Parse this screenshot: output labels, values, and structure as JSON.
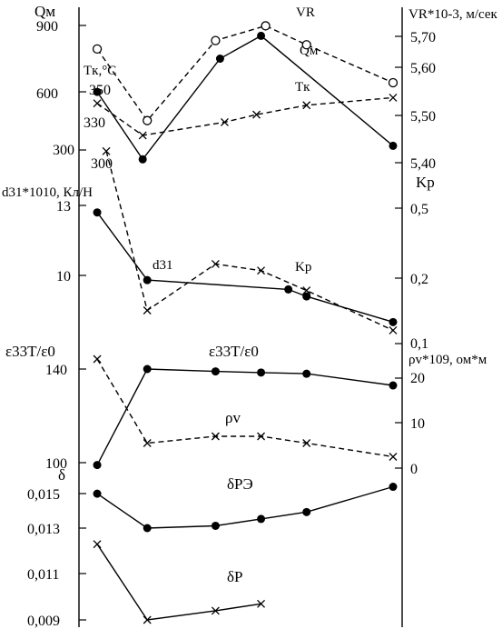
{
  "chart_data": [
    {
      "type": "line",
      "panel": "top",
      "x": [
        1,
        2,
        3,
        4,
        5,
        6,
        7
      ],
      "series": [
        {
          "name": "Qм",
          "marker": "filled-circle",
          "line": "solid",
          "axis": "left-Q",
          "points": [
            [
              1,
              580
            ],
            [
              2,
              255
            ],
            [
              3.7,
              740
            ],
            [
              4.6,
              850
            ],
            [
              7.5,
              320
            ]
          ]
        },
        {
          "name": "Tк",
          "marker": "cross",
          "line": "dashed",
          "axis": "left-T",
          "points": [
            [
              1,
              331
            ],
            [
              2,
              314
            ],
            [
              3.8,
              321
            ],
            [
              4.5,
              325
            ],
            [
              5.6,
              330
            ],
            [
              7.5,
              334
            ]
          ]
        },
        {
          "name": "VR",
          "marker": "open-circle",
          "line": "dashed",
          "axis": "right-V",
          "points": [
            [
              1,
              5.67
            ],
            [
              2.1,
              5.5
            ],
            [
              3.6,
              5.69
            ],
            [
              4.7,
              5.725
            ],
            [
              5.6,
              5.68
            ],
            [
              7.5,
              5.59
            ]
          ]
        }
      ],
      "axes": {
        "left_Q": {
          "label": "Qм",
          "ticks": [
            "300",
            "600",
            "900"
          ],
          "range": [
            200,
            1050
          ]
        },
        "left_T": {
          "label": "Tк,°C",
          "ticks": [
            "300",
            "330",
            "350"
          ]
        },
        "right_V": {
          "label": "VR*10-3, м/сек",
          "ticks": [
            "5,40",
            "5,50",
            "5,60",
            "5,70"
          ],
          "range": [
            5.33,
            5.745
          ]
        }
      },
      "labels": {
        "Q": "Qм",
        "T": "Tк",
        "V": "VR"
      }
    },
    {
      "type": "line",
      "panel": "d31-Kp",
      "series": [
        {
          "name": "d31",
          "marker": "filled-circle",
          "line": "solid",
          "axis": "left-d31",
          "points": [
            [
              1,
              12.7
            ],
            [
              2.1,
              9.8
            ],
            [
              5.2,
              9.4
            ],
            [
              5.6,
              9.1
            ],
            [
              7.5,
              8.0
            ]
          ]
        },
        {
          "name": "Kp",
          "marker": "cross",
          "line": "dashed",
          "axis": "right-Kp",
          "points": [
            [
              1.2,
              0.39
            ],
            [
              2.1,
              0.15
            ],
            [
              3.6,
              0.22
            ],
            [
              4.6,
              0.21
            ],
            [
              5.6,
              0.18
            ],
            [
              7.5,
              0.12
            ]
          ]
        }
      ],
      "axes": {
        "left_d31": {
          "label": "d31*1010, Кл/Н",
          "ticks": [
            "10",
            "13"
          ]
        },
        "right_Kp": {
          "label": "Kp",
          "ticks": [
            "0,1",
            "0,2",
            "0,5"
          ]
        }
      },
      "labels": {
        "d": "d31",
        "k": "Kp"
      }
    },
    {
      "type": "line",
      "panel": "eps-rho",
      "series": [
        {
          "name": "ε33T/ε0",
          "marker": "filled-circle",
          "line": "solid",
          "axis": "left-eps",
          "points": [
            [
              1,
              99
            ],
            [
              2.1,
              140
            ],
            [
              3.6,
              139
            ],
            [
              4.6,
              138.5
            ],
            [
              5.6,
              138
            ],
            [
              7.5,
              133
            ]
          ]
        },
        {
          "name": "ρv",
          "marker": "cross",
          "line": "dashed",
          "axis": "right-rho",
          "points": [
            [
              1,
              24
            ],
            [
              2.1,
              5.5
            ],
            [
              3.6,
              7
            ],
            [
              4.6,
              7
            ],
            [
              5.6,
              5.5
            ],
            [
              7.5,
              2.5
            ]
          ]
        }
      ],
      "axes": {
        "left_eps": {
          "label": "ε33T/ε0",
          "ticks": [
            "100",
            "140"
          ]
        },
        "right_rho": {
          "label": "ρv*109, ом*м",
          "ticks": [
            "0",
            "10",
            "20"
          ]
        }
      },
      "labels": {
        "eps": "ε33T/ε0",
        "rho": "ρv"
      }
    },
    {
      "type": "line",
      "panel": "delta",
      "series": [
        {
          "name": "δPЭ",
          "marker": "filled-circle",
          "line": "solid",
          "points": [
            [
              1,
              0.0145
            ],
            [
              2.1,
              0.013
            ],
            [
              3.6,
              0.0131
            ],
            [
              4.6,
              0.0134
            ],
            [
              5.6,
              0.0137
            ],
            [
              7.5,
              0.0148
            ]
          ]
        },
        {
          "name": "δP",
          "marker": "cross",
          "line": "solid",
          "points": [
            [
              1,
              0.0123
            ],
            [
              2.1,
              0.009
            ],
            [
              3.6,
              0.0094
            ],
            [
              4.6,
              0.0097
            ]
          ]
        }
      ],
      "axes": {
        "left_delta": {
          "label": "δ",
          "ticks": [
            "0,009",
            "0,011",
            "0,013",
            "0,015"
          ]
        }
      },
      "labels": {
        "pe": "δPЭ",
        "p": "δP"
      }
    }
  ]
}
